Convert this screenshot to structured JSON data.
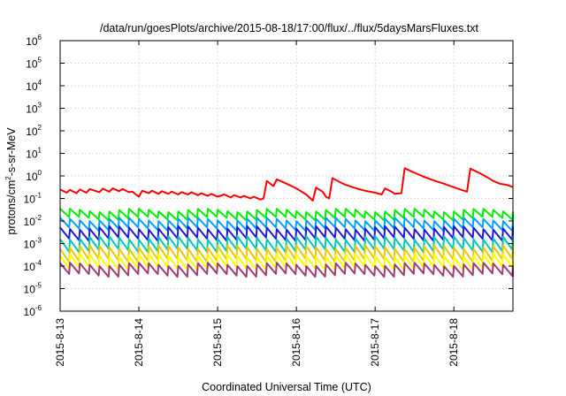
{
  "chart_data": {
    "type": "line",
    "title": "/data/run/goesPlots/archive/2015-08-18/17:00/flux/../flux/5daysMarsFluxes.txt",
    "xlabel": "Coordinated Universal Time (UTC)",
    "ylabel": {
      "pre": "protons/cm",
      "sup": "2",
      "post": "-s-sr-MeV"
    },
    "yscale": "log",
    "ylim": [
      1e-06,
      1000000.0
    ],
    "xlim": [
      "2015-08-13T00:00",
      "2015-08-18T18:00"
    ],
    "grid": true,
    "legend": "none",
    "x_ticks": [
      {
        "date": "2015-08-13",
        "label": "2015-8-13"
      },
      {
        "date": "2015-08-14",
        "label": "2015-8-14"
      },
      {
        "date": "2015-08-15",
        "label": "2015-8-15"
      },
      {
        "date": "2015-08-16",
        "label": "2015-8-16"
      },
      {
        "date": "2015-08-17",
        "label": "2015-8-17"
      },
      {
        "date": "2015-08-18",
        "label": "2015-8-18"
      }
    ],
    "y_ticks": [
      {
        "value": 1e-06,
        "base": "10",
        "exp": "-6"
      },
      {
        "value": 1e-05,
        "base": "10",
        "exp": "-5"
      },
      {
        "value": 0.0001,
        "base": "10",
        "exp": "-4"
      },
      {
        "value": 0.001,
        "base": "10",
        "exp": "-3"
      },
      {
        "value": 0.01,
        "base": "10",
        "exp": "-2"
      },
      {
        "value": 0.1,
        "base": "10",
        "exp": "-1"
      },
      {
        "value": 1,
        "base": "10",
        "exp": "0"
      },
      {
        "value": 10,
        "base": "10",
        "exp": "1"
      },
      {
        "value": 100,
        "base": "10",
        "exp": "2"
      },
      {
        "value": 1000,
        "base": "10",
        "exp": "3"
      },
      {
        "value": 10000,
        "base": "10",
        "exp": "4"
      },
      {
        "value": 100000,
        "base": "10",
        "exp": "5"
      },
      {
        "value": 1000000,
        "base": "10",
        "exp": "6"
      }
    ],
    "series": [
      {
        "color": "#ff0000",
        "kind": "main",
        "points": [
          [
            "2015-08-13T00:00",
            0.25
          ],
          [
            "2015-08-13T02:00",
            0.18
          ],
          [
            "2015-08-13T03:00",
            0.24
          ],
          [
            "2015-08-13T05:00",
            0.17
          ],
          [
            "2015-08-13T06:00",
            0.25
          ],
          [
            "2015-08-13T08:00",
            0.18
          ],
          [
            "2015-08-13T09:00",
            0.26
          ],
          [
            "2015-08-13T12:00",
            0.19
          ],
          [
            "2015-08-13T13:00",
            0.27
          ],
          [
            "2015-08-13T15:00",
            0.2
          ],
          [
            "2015-08-13T16:00",
            0.28
          ],
          [
            "2015-08-13T18:00",
            0.21
          ],
          [
            "2015-08-13T19:00",
            0.26
          ],
          [
            "2015-08-13T21:00",
            0.19
          ],
          [
            "2015-08-13T22:00",
            0.2
          ],
          [
            "2015-08-14T00:00",
            0.12
          ],
          [
            "2015-08-14T01:00",
            0.22
          ],
          [
            "2015-08-14T03:00",
            0.17
          ],
          [
            "2015-08-14T04:00",
            0.22
          ],
          [
            "2015-08-14T06:00",
            0.16
          ],
          [
            "2015-08-14T07:00",
            0.21
          ],
          [
            "2015-08-14T09:00",
            0.16
          ],
          [
            "2015-08-14T10:00",
            0.2
          ],
          [
            "2015-08-14T12:00",
            0.15
          ],
          [
            "2015-08-14T13:00",
            0.19
          ],
          [
            "2015-08-14T15:00",
            0.15
          ],
          [
            "2015-08-14T16:00",
            0.19
          ],
          [
            "2015-08-14T18:00",
            0.14
          ],
          [
            "2015-08-14T19:00",
            0.17
          ],
          [
            "2015-08-14T21:00",
            0.13
          ],
          [
            "2015-08-14T22:00",
            0.16
          ],
          [
            "2015-08-15T00:00",
            0.12
          ],
          [
            "2015-08-15T02:00",
            0.15
          ],
          [
            "2015-08-15T04:00",
            0.11
          ],
          [
            "2015-08-15T05:00",
            0.14
          ],
          [
            "2015-08-15T07:00",
            0.11
          ],
          [
            "2015-08-15T08:00",
            0.13
          ],
          [
            "2015-08-15T10:00",
            0.1
          ],
          [
            "2015-08-15T11:00",
            0.12
          ],
          [
            "2015-08-15T13:00",
            0.09
          ],
          [
            "2015-08-15T14:00",
            0.1
          ],
          [
            "2015-08-15T15:00",
            0.6
          ],
          [
            "2015-08-15T17:00",
            0.35
          ],
          [
            "2015-08-15T18:00",
            0.7
          ],
          [
            "2015-08-15T21:00",
            0.45
          ],
          [
            "2015-08-16T00:00",
            0.28
          ],
          [
            "2015-08-16T03:00",
            0.15
          ],
          [
            "2015-08-16T05:00",
            0.08
          ],
          [
            "2015-08-16T06:00",
            0.3
          ],
          [
            "2015-08-16T08:00",
            0.2
          ],
          [
            "2015-08-16T09:00",
            0.12
          ],
          [
            "2015-08-16T10:00",
            0.1
          ],
          [
            "2015-08-16T11:00",
            0.8
          ],
          [
            "2015-08-16T13:00",
            0.55
          ],
          [
            "2015-08-16T15:00",
            0.4
          ],
          [
            "2015-08-16T17:00",
            0.32
          ],
          [
            "2015-08-16T19:00",
            0.26
          ],
          [
            "2015-08-16T21:00",
            0.22
          ],
          [
            "2015-08-17T00:00",
            0.18
          ],
          [
            "2015-08-17T02:00",
            0.15
          ],
          [
            "2015-08-17T03:00",
            0.28
          ],
          [
            "2015-08-17T05:00",
            0.2
          ],
          [
            "2015-08-17T06:00",
            0.16
          ],
          [
            "2015-08-17T08:00",
            0.17
          ],
          [
            "2015-08-17T09:00",
            2.2
          ],
          [
            "2015-08-17T11:00",
            1.6
          ],
          [
            "2015-08-17T13:00",
            1.2
          ],
          [
            "2015-08-17T15:00",
            0.9
          ],
          [
            "2015-08-17T17:00",
            0.7
          ],
          [
            "2015-08-17T19:00",
            0.55
          ],
          [
            "2015-08-17T21:00",
            0.45
          ],
          [
            "2015-08-17T23:00",
            0.35
          ],
          [
            "2015-08-18T02:00",
            0.25
          ],
          [
            "2015-08-18T04:00",
            0.2
          ],
          [
            "2015-08-18T05:00",
            2.1
          ],
          [
            "2015-08-18T08:00",
            1.3
          ],
          [
            "2015-08-18T10:00",
            0.9
          ],
          [
            "2015-08-18T12:00",
            0.6
          ],
          [
            "2015-08-18T14:00",
            0.45
          ],
          [
            "2015-08-18T16:00",
            0.4
          ],
          [
            "2015-08-18T18:00",
            0.32
          ]
        ]
      },
      {
        "color": "#00ee00",
        "kind": "sawtooth",
        "peak": 0.03,
        "trough": 0.013
      },
      {
        "color": "#00a0ff",
        "kind": "sawtooth",
        "peak": 0.012,
        "trough": 0.0045
      },
      {
        "color": "#1c1cd8",
        "kind": "sawtooth",
        "peak": 0.005,
        "trough": 0.0016
      },
      {
        "color": "#00c8b4",
        "kind": "sawtooth",
        "peak": 0.0018,
        "trough": 0.0005
      },
      {
        "color": "#e8c800",
        "kind": "sawtooth",
        "peak": 0.0007,
        "trough": 0.00018
      },
      {
        "color": "#ffff00",
        "kind": "sawtooth",
        "peak": 0.0003,
        "trough": 8e-05
      },
      {
        "color": "#a03c78",
        "kind": "sawtooth",
        "peak": 0.00012,
        "trough": 4e-05
      }
    ]
  }
}
